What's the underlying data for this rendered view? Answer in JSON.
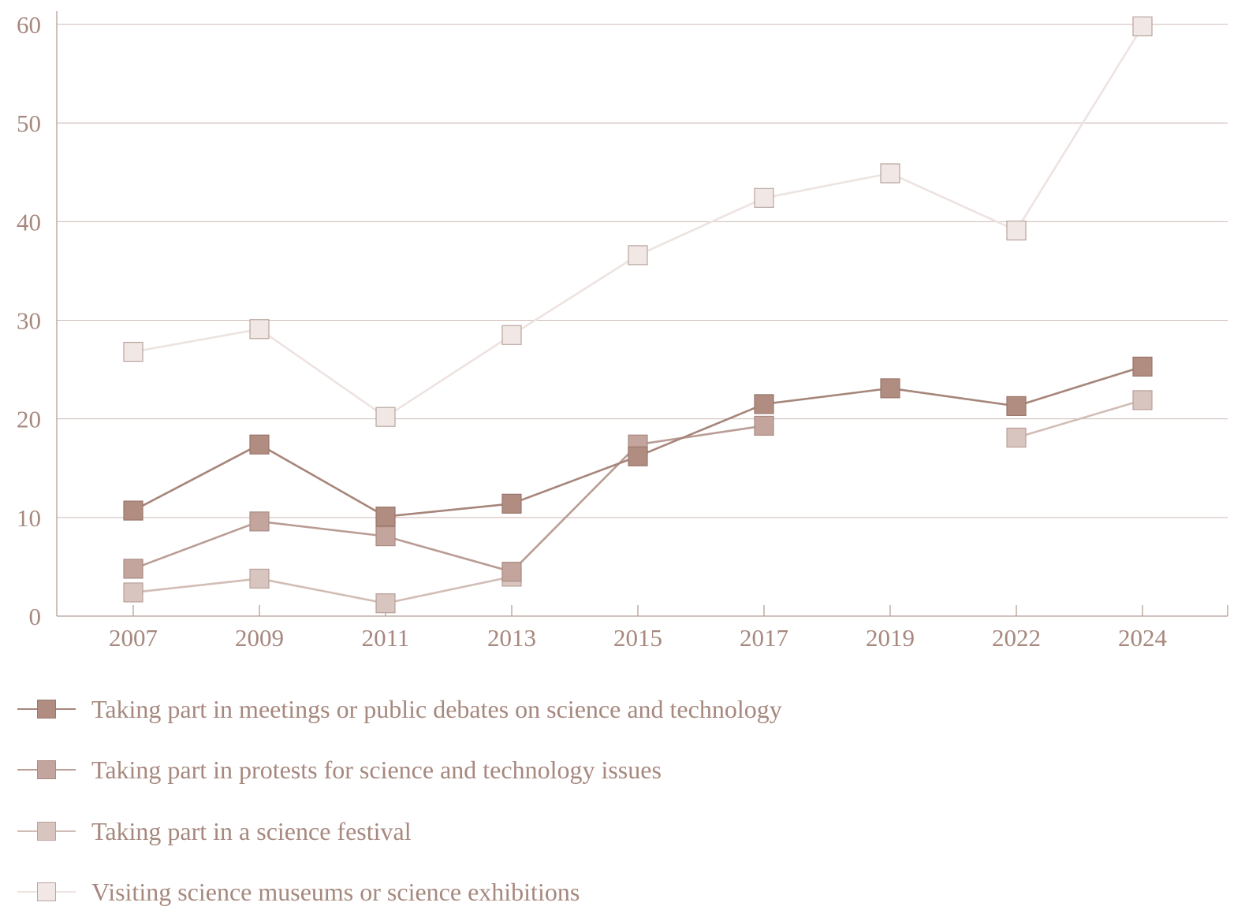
{
  "chart_data": {
    "type": "line",
    "title": "",
    "xlabel": "",
    "ylabel": "",
    "ylim": [
      0,
      60
    ],
    "yticks": [
      0,
      10,
      20,
      30,
      40,
      50,
      60
    ],
    "grid": true,
    "legend_position": "bottom",
    "categories": [
      "2007",
      "2009",
      "2011",
      "2013",
      "2015",
      "2017",
      "2019",
      "2022",
      "2024"
    ],
    "series": [
      {
        "name": "Taking part in meetings or public debates on science and technology",
        "values": [
          10.7,
          17.4,
          10.1,
          11.4,
          16.2,
          21.5,
          23.1,
          21.3,
          25.3
        ],
        "line_color": "#a6857a",
        "marker_fill": "#b08c81",
        "marker_stroke": "#9a776c"
      },
      {
        "name": "Taking part in protests for science and technology issues",
        "values": [
          4.8,
          9.6,
          8.1,
          4.5,
          17.4,
          19.3,
          null,
          null,
          null
        ],
        "line_color": "#b99d95",
        "marker_fill": "#c4a59d",
        "marker_stroke": "#a98c84"
      },
      {
        "name": "Taking part in a science festival",
        "values": [
          2.4,
          3.8,
          1.3,
          4.0,
          null,
          null,
          null,
          18.1,
          21.9
        ],
        "line_color": "#d2bdb6",
        "marker_fill": "#d9c5bf",
        "marker_stroke": "#b9a099"
      },
      {
        "name": "Visiting science museums or science exhibitions",
        "values": [
          26.8,
          29.1,
          20.2,
          28.5,
          36.6,
          42.4,
          44.9,
          39.1,
          59.8
        ],
        "line_color": "#ede3e0",
        "marker_fill": "#f1e8e5",
        "marker_stroke": "#b9a49d"
      }
    ]
  }
}
